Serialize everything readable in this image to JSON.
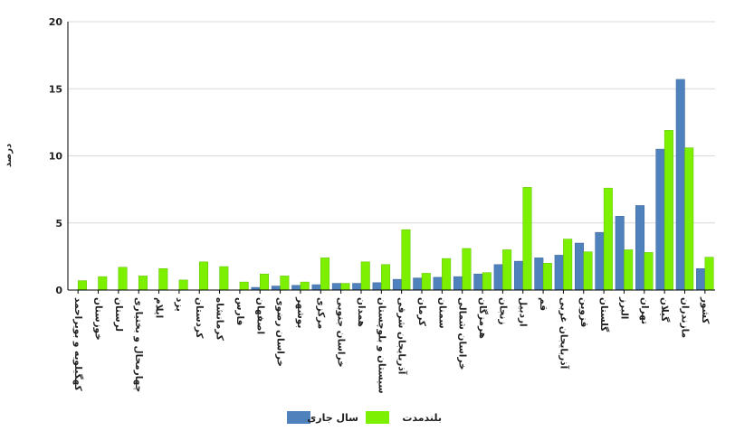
{
  "chart_data": {
    "type": "bar",
    "ylabel": "درصد",
    "xlabel": "",
    "ylim": [
      0,
      20
    ],
    "yticks": [
      "0",
      "5",
      "10",
      "15",
      "20"
    ],
    "grid": "horizontal",
    "legend_position": "bottom",
    "categories": [
      "کهگیلویه و بویراحمد",
      "خوزستان",
      "لرستان",
      "چهارمحال و بختیاری",
      "ایلام",
      "یزد",
      "کردستان",
      "کرمانشاه",
      "فارس",
      "اصفهان",
      "خراسان رضوی",
      "بوشهر",
      "مرکزی",
      "خراسان جنوبی",
      "همدان",
      "سیستان و بلوچستان",
      "آذربایجان شرقی",
      "کرمان",
      "سمنان",
      "خراسان شمالی",
      "هرمزگان",
      "زنجان",
      "اردبیل",
      "قم",
      "آذربایجان غربی",
      "قزوین",
      "گلستان",
      "البرز",
      "تهران",
      "گیلان",
      "مازندران",
      "کشور"
    ],
    "series": [
      {
        "name": "سال جاری",
        "color": "#4f81bd",
        "values": [
          0,
          0,
          0,
          0,
          0,
          0,
          0,
          0,
          0,
          0.2,
          0.3,
          0.35,
          0.4,
          0.5,
          0.5,
          0.55,
          0.8,
          0.9,
          0.95,
          1.0,
          1.2,
          1.9,
          2.15,
          2.4,
          2.6,
          3.5,
          4.3,
          5.5,
          6.3,
          10.5,
          15.7,
          1.6
        ]
      },
      {
        "name": "بلندمدت",
        "color": "#7cf000",
        "values": [
          0.7,
          1.0,
          1.7,
          1.05,
          1.6,
          0.75,
          2.1,
          1.75,
          0.6,
          1.2,
          1.05,
          0.6,
          2.4,
          0.5,
          2.1,
          1.9,
          4.5,
          1.25,
          2.35,
          3.1,
          1.3,
          3.0,
          7.65,
          2.0,
          3.8,
          2.85,
          7.6,
          3.0,
          2.8,
          11.9,
          10.6,
          2.45
        ]
      }
    ]
  }
}
